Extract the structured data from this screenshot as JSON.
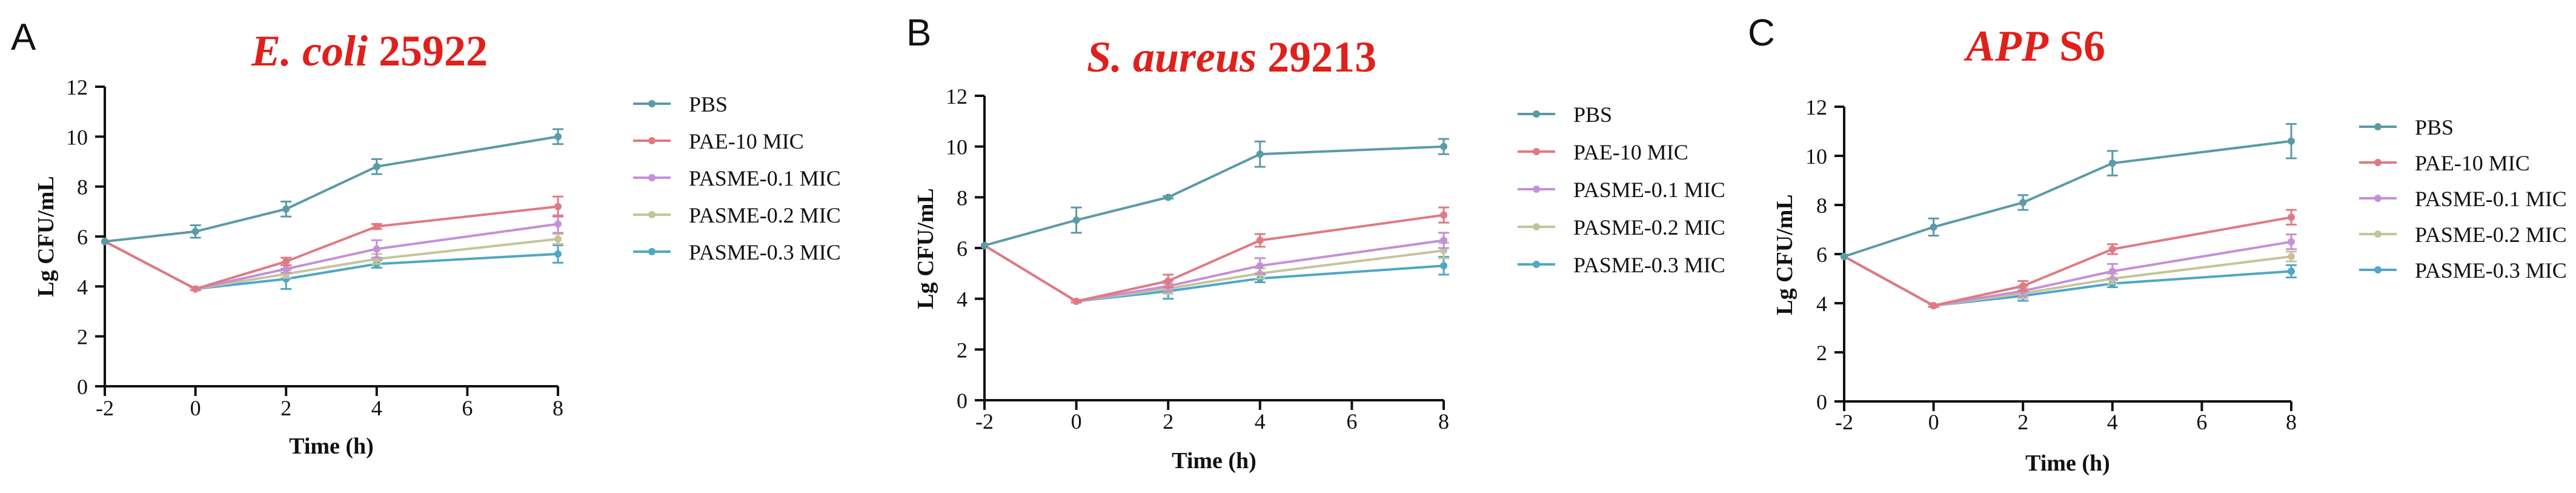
{
  "colors": {
    "title": "#e0201b",
    "axis": "#111111",
    "PBS": "#5b9aa8",
    "PAE-10 MIC": "#e07a80",
    "PASME-0.1 MIC": "#c58fd8",
    "PASME-0.2 MIC": "#c4c49a",
    "PASME-0.3 MIC": "#4ea7c6"
  },
  "chart_data": [
    {
      "type": "line",
      "panel": "A",
      "title": {
        "italic": "E. coli",
        "normal": " 25922"
      },
      "xlabel": "Time  (h)",
      "ylabel": "Lg CFU/mL",
      "xlim": [
        -2,
        8
      ],
      "ylim": [
        0,
        12
      ],
      "xticks": [
        -2,
        0,
        2,
        4,
        6,
        8
      ],
      "yticks": [
        0,
        2,
        4,
        6,
        8,
        10,
        12
      ],
      "grid": false,
      "legend": "right",
      "series": [
        {
          "name": "PBS",
          "x": [
            -2,
            0,
            2,
            4,
            8
          ],
          "y": [
            5.8,
            6.2,
            7.1,
            8.8,
            10.0
          ],
          "err": [
            0,
            0.25,
            0.3,
            0.3,
            0.3
          ]
        },
        {
          "name": "PAE-10 MIC",
          "x": [
            -2,
            0,
            2,
            4,
            8
          ],
          "y": [
            5.8,
            3.9,
            5.0,
            6.4,
            7.2
          ],
          "err": [
            0,
            0.05,
            0.15,
            0.1,
            0.4
          ]
        },
        {
          "name": "PASME-0.1 MIC",
          "x": [
            -2,
            0,
            2,
            4,
            8
          ],
          "y": [
            5.8,
            3.9,
            4.7,
            5.5,
            6.5
          ],
          "err": [
            0,
            0.05,
            0.15,
            0.35,
            0.35
          ]
        },
        {
          "name": "PASME-0.2 MIC",
          "x": [
            -2,
            0,
            2,
            4,
            8
          ],
          "y": [
            5.8,
            3.9,
            4.5,
            5.1,
            5.9
          ],
          "err": [
            0,
            0.05,
            0.15,
            0.2,
            0.2
          ]
        },
        {
          "name": "PASME-0.3 MIC",
          "x": [
            -2,
            0,
            2,
            4,
            8
          ],
          "y": [
            5.8,
            3.9,
            4.3,
            4.9,
            5.3
          ],
          "err": [
            0,
            0.05,
            0.4,
            0.15,
            0.35
          ]
        }
      ]
    },
    {
      "type": "line",
      "panel": "B",
      "title": {
        "italic": "S. aureus",
        "normal": " 29213"
      },
      "xlabel": "Time  (h)",
      "ylabel": "Lg CFU/mL",
      "xlim": [
        -2,
        8
      ],
      "ylim": [
        0,
        12
      ],
      "xticks": [
        -2,
        0,
        2,
        4,
        6,
        8
      ],
      "yticks": [
        0,
        2,
        4,
        6,
        8,
        10,
        12
      ],
      "grid": false,
      "legend": "right",
      "series": [
        {
          "name": "PBS",
          "x": [
            -2,
            0,
            2,
            4,
            8
          ],
          "y": [
            6.1,
            7.1,
            8.0,
            9.7,
            10.0
          ],
          "err": [
            0,
            0.5,
            0.05,
            0.5,
            0.3
          ]
        },
        {
          "name": "PAE-10 MIC",
          "x": [
            -2,
            0,
            2,
            4,
            8
          ],
          "y": [
            6.1,
            3.9,
            4.7,
            6.3,
            7.3
          ],
          "err": [
            0,
            0.05,
            0.25,
            0.25,
            0.3
          ]
        },
        {
          "name": "PASME-0.1 MIC",
          "x": [
            -2,
            0,
            2,
            4,
            8
          ],
          "y": [
            6.1,
            3.9,
            4.5,
            5.3,
            6.3
          ],
          "err": [
            0,
            0.05,
            0.2,
            0.3,
            0.3
          ]
        },
        {
          "name": "PASME-0.2 MIC",
          "x": [
            -2,
            0,
            2,
            4,
            8
          ],
          "y": [
            6.1,
            3.9,
            4.4,
            5.0,
            5.9
          ],
          "err": [
            0,
            0.05,
            0.2,
            0.2,
            0.3
          ]
        },
        {
          "name": "PASME-0.3 MIC",
          "x": [
            -2,
            0,
            2,
            4,
            8
          ],
          "y": [
            6.1,
            3.9,
            4.3,
            4.8,
            5.3
          ],
          "err": [
            0,
            0.05,
            0.3,
            0.15,
            0.35
          ]
        }
      ]
    },
    {
      "type": "line",
      "panel": "C",
      "title": {
        "italic": "APP",
        "normal": " S6"
      },
      "xlabel": "Time  (h)",
      "ylabel": "Lg CFU/mL",
      "xlim": [
        -2,
        8
      ],
      "ylim": [
        0,
        12
      ],
      "xticks": [
        -2,
        0,
        2,
        4,
        6,
        8
      ],
      "yticks": [
        0,
        2,
        4,
        6,
        8,
        10,
        12
      ],
      "grid": false,
      "legend": "right",
      "series": [
        {
          "name": "PBS",
          "x": [
            -2,
            0,
            2,
            4,
            8
          ],
          "y": [
            5.9,
            7.1,
            8.1,
            9.7,
            10.6
          ],
          "err": [
            0,
            0.35,
            0.3,
            0.5,
            0.7
          ]
        },
        {
          "name": "PAE-10 MIC",
          "x": [
            -2,
            0,
            2,
            4,
            8
          ],
          "y": [
            5.9,
            3.9,
            4.7,
            6.2,
            7.5
          ],
          "err": [
            0,
            0.05,
            0.2,
            0.2,
            0.3
          ]
        },
        {
          "name": "PASME-0.1 MIC",
          "x": [
            -2,
            0,
            2,
            4,
            8
          ],
          "y": [
            5.9,
            3.9,
            4.5,
            5.3,
            6.5
          ],
          "err": [
            0,
            0.05,
            0.2,
            0.3,
            0.3
          ]
        },
        {
          "name": "PASME-0.2 MIC",
          "x": [
            -2,
            0,
            2,
            4,
            8
          ],
          "y": [
            5.9,
            3.9,
            4.4,
            5.0,
            5.9
          ],
          "err": [
            0,
            0.05,
            0.2,
            0.2,
            0.2
          ]
        },
        {
          "name": "PASME-0.3 MIC",
          "x": [
            -2,
            0,
            2,
            4,
            8
          ],
          "y": [
            5.9,
            3.9,
            4.3,
            4.8,
            5.3
          ],
          "err": [
            0,
            0.05,
            0.2,
            0.15,
            0.25
          ]
        }
      ]
    }
  ]
}
